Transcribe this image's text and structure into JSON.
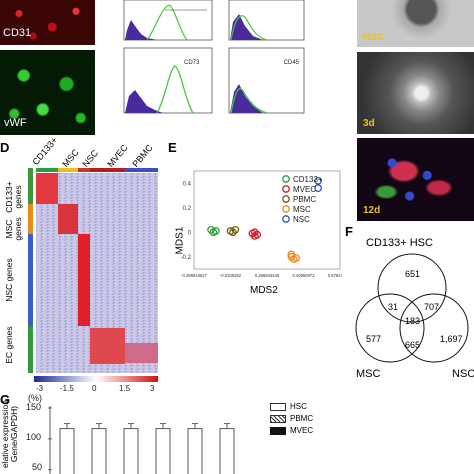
{
  "panelA": {
    "labels": [
      "CD31",
      "vWF"
    ]
  },
  "panelB": {
    "labels": [
      "CD73",
      "CD45"
    ]
  },
  "panelC": {
    "labels": [
      "NSC",
      "3d",
      "12d"
    ]
  },
  "panelD": {
    "letter": "D",
    "columns": [
      "CD133+",
      "MSC",
      "NSC",
      "MVEC",
      "PBMC"
    ],
    "rows": [
      {
        "line1": "CD133+",
        "line2": "genes"
      },
      {
        "line1": "MSC",
        "line2": "genes"
      },
      {
        "line1": "NSC genes",
        "line2": ""
      },
      {
        "line1": "EC genes",
        "line2": ""
      }
    ],
    "colorbar_ticks": [
      "-3",
      "-1.5",
      "0",
      "1.5",
      "3"
    ]
  },
  "panelE": {
    "letter": "E",
    "chart_data": {
      "type": "scatter",
      "xlabel": "MDS2",
      "ylabel": "MDS1",
      "xticks": [
        "-0.299918627",
        "-0.0339282",
        "0.266834445",
        "0.40856972",
        "0.678470433"
      ],
      "yticks": [
        "0.4",
        "0.2",
        "0",
        "-0.2"
      ],
      "series": [
        {
          "name": "CD133+",
          "color": "#2e9c3a",
          "points": [
            [
              -0.23,
              0.02
            ],
            [
              -0.22,
              0.0
            ],
            [
              -0.21,
              0.01
            ]
          ]
        },
        {
          "name": "MVEC",
          "color": "#d21c2e",
          "points": [
            [
              -0.06,
              -0.01
            ],
            [
              -0.05,
              -0.03
            ],
            [
              -0.04,
              -0.02
            ],
            [
              -0.05,
              0.0
            ]
          ]
        },
        {
          "name": "PBMC",
          "color": "#7a5a10",
          "points": [
            [
              -0.14,
              0.0
            ],
            [
              -0.13,
              0.02
            ],
            [
              -0.15,
              0.01
            ]
          ]
        },
        {
          "name": "MSC",
          "color": "#e88b1a",
          "points": [
            [
              0.1,
              -0.2
            ],
            [
              0.11,
              -0.22
            ],
            [
              0.1,
              -0.18
            ],
            [
              0.12,
              -0.21
            ]
          ]
        },
        {
          "name": "NSC",
          "color": "#3a4fc4",
          "points": [
            [
              0.21,
              0.42
            ],
            [
              0.21,
              0.36
            ]
          ]
        }
      ]
    }
  },
  "panelF": {
    "letter": "F",
    "title": "CD133+ HSC",
    "bottom_left": "MSC",
    "bottom_right": "NSC",
    "chart_data": {
      "type": "venn",
      "sets": [
        "CD133+ HSC",
        "MSC",
        "NSC"
      ],
      "regions": [
        {
          "sets": [
            "CD133+ HSC"
          ],
          "value": "651"
        },
        {
          "sets": [
            "CD133+ HSC",
            "MSC"
          ],
          "value": "31"
        },
        {
          "sets": [
            "CD133+ HSC",
            "NSC"
          ],
          "value": "707"
        },
        {
          "sets": [
            "CD133+ HSC",
            "MSC",
            "NSC"
          ],
          "value": "183"
        },
        {
          "sets": [
            "MSC"
          ],
          "value": "577"
        },
        {
          "sets": [
            "MSC",
            "NSC"
          ],
          "value": "665"
        },
        {
          "sets": [
            "NSC"
          ],
          "value": "1,697"
        }
      ]
    }
  },
  "panelG": {
    "letter": "G",
    "unit": "(%)",
    "ylabel_1": "elative expression",
    "ylabel_2": "Gene/GAPDH)",
    "chart_data": {
      "type": "bar",
      "yticks": [
        "150",
        "100",
        "50"
      ],
      "ylim": [
        0,
        150
      ],
      "legend": [
        "HSC",
        "PBMC",
        "MVEC"
      ],
      "values": [
        100,
        100,
        100,
        100,
        100,
        100
      ]
    }
  },
  "colors": {
    "red_stain": "#c42020",
    "green_stain": "#2fa83a",
    "hist_purple": "#4a2a9c",
    "hist_green": "#49c43a"
  }
}
